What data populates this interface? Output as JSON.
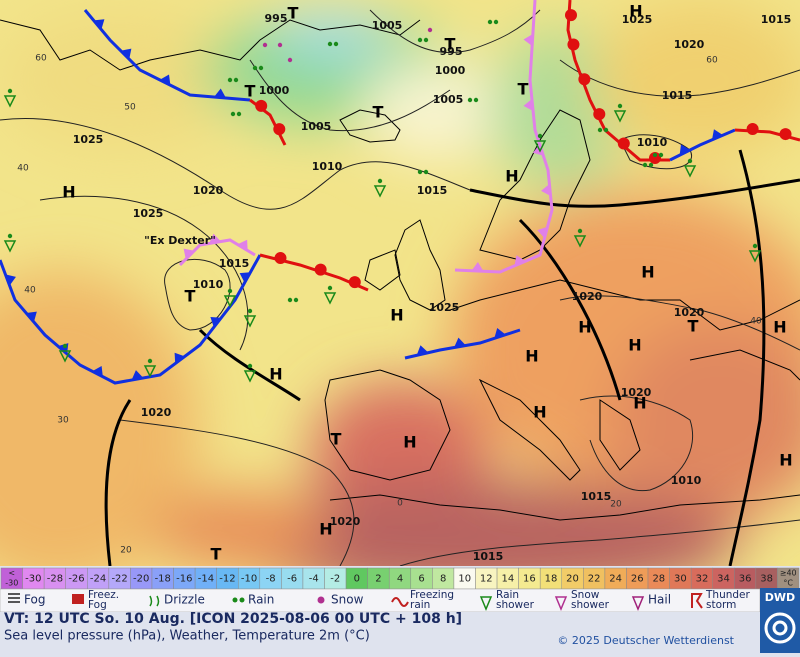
{
  "map": {
    "isobar_labels": [
      "1025",
      "1020",
      "1025",
      "1015",
      "1010",
      "1010",
      "1015",
      "1005",
      "1000",
      "995",
      "1005",
      "995",
      "1000",
      "1005",
      "1015",
      "1020",
      "1025",
      "1015",
      "1010",
      "1020",
      "1025",
      "1020",
      "1020",
      "1010",
      "1015",
      "1020",
      "1020",
      "1015"
    ],
    "temperature_labels": [
      "60",
      "50",
      "40",
      "40",
      "30",
      "20",
      "40",
      "60",
      "0",
      "20"
    ],
    "highs": [
      "H",
      "H",
      "H",
      "H",
      "H",
      "H",
      "H",
      "H",
      "H",
      "H",
      "H",
      "H",
      "H",
      "H",
      "H"
    ],
    "lows": [
      "T",
      "T",
      "T",
      "T",
      "T",
      "T",
      "T",
      "T",
      "T"
    ],
    "storm_label": "\"Ex Dexter\""
  },
  "colorbar": {
    "cells": [
      {
        "lines": [
          "<",
          "-30"
        ],
        "color": "#c060d8"
      },
      {
        "lines": [
          "-30"
        ],
        "color": "#e088f0"
      },
      {
        "lines": [
          "-28"
        ],
        "color": "#d890f0"
      },
      {
        "lines": [
          "-26"
        ],
        "color": "#cc98f4"
      },
      {
        "lines": [
          "-24"
        ],
        "color": "#c0a0f8"
      },
      {
        "lines": [
          "-22"
        ],
        "color": "#b4a8fa"
      },
      {
        "lines": [
          "-20"
        ],
        "color": "#9898f8"
      },
      {
        "lines": [
          "-18"
        ],
        "color": "#8aa0f8"
      },
      {
        "lines": [
          "-16"
        ],
        "color": "#7ca8f8"
      },
      {
        "lines": [
          "-14"
        ],
        "color": "#70b0f8"
      },
      {
        "lines": [
          "-12"
        ],
        "color": "#68b8f4"
      },
      {
        "lines": [
          "-10"
        ],
        "color": "#78c8f4"
      },
      {
        "lines": [
          "-8"
        ],
        "color": "#8cd4f4"
      },
      {
        "lines": [
          "-6"
        ],
        "color": "#98dcf0"
      },
      {
        "lines": [
          "-4"
        ],
        "color": "#a8e4ec"
      },
      {
        "lines": [
          "-2"
        ],
        "color": "#b4ece4"
      },
      {
        "lines": [
          "0"
        ],
        "color": "#60c860"
      },
      {
        "lines": [
          "2"
        ],
        "color": "#78d070"
      },
      {
        "lines": [
          "4"
        ],
        "color": "#90d880"
      },
      {
        "lines": [
          "6"
        ],
        "color": "#a8e090"
      },
      {
        "lines": [
          "8"
        ],
        "color": "#c0e8a0"
      },
      {
        "lines": [
          "10"
        ],
        "color": "#fafaf0"
      },
      {
        "lines": [
          "12"
        ],
        "color": "#f8f4c0"
      },
      {
        "lines": [
          "14"
        ],
        "color": "#f6f0a8"
      },
      {
        "lines": [
          "16"
        ],
        "color": "#f4ea90"
      },
      {
        "lines": [
          "18"
        ],
        "color": "#f2e078"
      },
      {
        "lines": [
          "20"
        ],
        "color": "#f2cc68"
      },
      {
        "lines": [
          "22"
        ],
        "color": "#f0c060"
      },
      {
        "lines": [
          "24"
        ],
        "color": "#f0ac58"
      },
      {
        "lines": [
          "26"
        ],
        "color": "#ee9c58"
      },
      {
        "lines": [
          "28"
        ],
        "color": "#ea8a58"
      },
      {
        "lines": [
          "30"
        ],
        "color": "#e07858"
      },
      {
        "lines": [
          "32"
        ],
        "color": "#d86c5c"
      },
      {
        "lines": [
          "34"
        ],
        "color": "#cc6460"
      },
      {
        "lines": [
          "36"
        ],
        "color": "#b85c60"
      },
      {
        "lines": [
          "38"
        ],
        "color": "#a86060"
      },
      {
        "lines": [
          "≥40",
          "°C"
        ],
        "color": "#a09080"
      }
    ]
  },
  "legend": {
    "items": [
      {
        "lines": [
          "Fog"
        ]
      },
      {
        "lines": [
          "Freez.",
          "Fog"
        ]
      },
      {
        "lines": [
          "Drizzle"
        ]
      },
      {
        "lines": [
          "Rain"
        ]
      },
      {
        "lines": [
          "Snow"
        ]
      },
      {
        "lines": [
          "Freezing",
          "rain"
        ]
      },
      {
        "lines": [
          "Rain",
          "shower"
        ]
      },
      {
        "lines": [
          "Snow",
          "shower"
        ]
      },
      {
        "lines": [
          "Hail"
        ]
      },
      {
        "lines": [
          "Thunder",
          "storm"
        ]
      }
    ]
  },
  "footer": {
    "valid_time": "VT: 12 UTC So.  10 Aug. [ICON 2025-08-06  00 UTC + 108 h]",
    "description": "Sea level pressure (hPa), Weather, Temperature 2m (°C)",
    "copyright": "© 2025 Deutscher Wetterdienst",
    "logo": "DWD"
  }
}
